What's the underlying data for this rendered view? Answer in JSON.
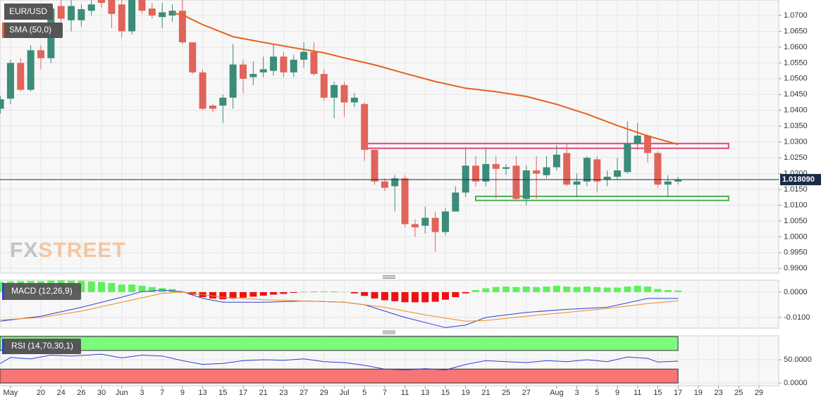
{
  "chart_data": [
    {
      "type": "candlestick",
      "title": "EUR/USD",
      "x": [
        -4,
        -3,
        -2,
        -1,
        0,
        1,
        2,
        3,
        4,
        5,
        6,
        7,
        8,
        9,
        10,
        11,
        12,
        13,
        14,
        15,
        16,
        17,
        18,
        19,
        20,
        21,
        22,
        23,
        24,
        25,
        26,
        27,
        28,
        29,
        30,
        31,
        32,
        33,
        34,
        35,
        36,
        37,
        38,
        39,
        40,
        41,
        42,
        43,
        44,
        45,
        46,
        47,
        48,
        49,
        50,
        51,
        52,
        53,
        54,
        55,
        56,
        57,
        58,
        59,
        60,
        61,
        62,
        63
      ],
      "open": [
        1.0405,
        1.0437,
        1.055,
        1.0465,
        1.059,
        1.0565,
        1.073,
        1.0685,
        1.0685,
        1.0715,
        1.0749,
        1.0749,
        1.0735,
        1.065,
        1.075,
        1.0722,
        1.0695,
        1.07,
        1.0715,
        1.0615,
        1.052,
        1.0415,
        1.0415,
        1.044,
        1.0545,
        1.0505,
        1.052,
        1.0525,
        1.057,
        1.052,
        1.056,
        1.0585,
        1.0515,
        1.044,
        1.048,
        1.0425,
        1.042,
        1.0275,
        1.0175,
        1.016,
        1.0185,
        1.004,
        1.0035,
        1.006,
        1.0015,
        1.008,
        1.014,
        1.0225,
        1.0175,
        1.023,
        1.0215,
        1.0225,
        1.012,
        1.021,
        1.0195,
        1.022,
        1.0265,
        1.0165,
        1.0175,
        1.0245,
        1.018,
        1.019,
        1.0205,
        1.0295,
        1.032,
        1.0265,
        1.0165,
        1.0175
      ],
      "high": [
        1.0445,
        1.056,
        1.0565,
        1.0606,
        1.0605,
        1.0725,
        1.075,
        1.0748,
        1.0735,
        1.0748,
        1.076,
        1.076,
        1.0765,
        1.0765,
        1.076,
        1.074,
        1.074,
        1.0735,
        1.076,
        1.0615,
        1.053,
        1.042,
        1.045,
        1.061,
        1.056,
        1.0555,
        1.057,
        1.061,
        1.0585,
        1.0575,
        1.0615,
        1.0615,
        1.053,
        1.049,
        1.049,
        1.0455,
        1.0425,
        1.0275,
        1.0185,
        1.0195,
        1.0195,
        1.0055,
        1.0095,
        1.008,
        1.009,
        1.016,
        1.028,
        1.0255,
        1.028,
        1.0255,
        1.023,
        1.0255,
        1.0225,
        1.0255,
        1.0255,
        1.029,
        1.0295,
        1.02,
        1.0255,
        1.0255,
        1.021,
        1.025,
        1.0365,
        1.036,
        1.0325,
        1.027,
        1.0195,
        1.019
      ],
      "low": [
        1.039,
        1.042,
        1.046,
        1.046,
        1.053,
        1.055,
        1.068,
        1.065,
        1.0665,
        1.07,
        1.0725,
        1.066,
        1.063,
        1.064,
        1.0705,
        1.069,
        1.066,
        1.068,
        1.061,
        1.0515,
        1.04,
        1.0395,
        1.036,
        1.0405,
        1.0455,
        1.048,
        1.0505,
        1.051,
        1.0505,
        1.0505,
        1.0535,
        1.051,
        1.043,
        1.0375,
        1.038,
        1.041,
        1.024,
        1.0165,
        1.0145,
        1.008,
        1.003,
        1.0,
        1.001,
        0.9953,
        1.0005,
        1.008,
        1.0125,
        1.016,
        1.016,
        1.012,
        1.0195,
        1.0115,
        1.01,
        1.012,
        1.0185,
        1.021,
        1.016,
        1.0125,
        1.016,
        1.014,
        1.016,
        1.018,
        1.02,
        1.0275,
        1.0235,
        1.0155,
        1.0125,
        1.0165
      ],
      "close": [
        1.0435,
        1.055,
        1.0465,
        1.059,
        1.0565,
        1.0722,
        1.069,
        1.073,
        1.072,
        1.0735,
        1.074,
        1.0705,
        1.065,
        1.075,
        1.0715,
        1.07,
        1.071,
        1.0715,
        1.0615,
        1.052,
        1.0405,
        1.0405,
        1.044,
        1.0545,
        1.05,
        1.0515,
        1.053,
        1.057,
        1.052,
        1.056,
        1.0585,
        1.0515,
        1.044,
        1.048,
        1.0425,
        1.044,
        1.0275,
        1.0175,
        1.0155,
        1.0185,
        1.004,
        1.003,
        1.006,
        1.0015,
        1.008,
        1.014,
        1.0225,
        1.0175,
        1.023,
        1.0215,
        1.022,
        1.012,
        1.021,
        1.02,
        1.022,
        1.026,
        1.0165,
        1.0175,
        1.025,
        1.0175,
        1.019,
        1.021,
        1.0295,
        1.032,
        1.0265,
        1.0165,
        1.0175,
        1.0181
      ],
      "up_color": "#3b8c79",
      "down_color": "#e0645a",
      "series": [
        {
          "name": "SMA (50,0)",
          "color": "#e8601c",
          "x": [
            13,
            14,
            16,
            19,
            22,
            25,
            28,
            30,
            33,
            36,
            39,
            42,
            45,
            48,
            51,
            54,
            57,
            60,
            63
          ],
          "values": [
            1.0708,
            1.0702,
            1.0671,
            1.0633,
            1.0615,
            1.0598,
            1.0582,
            1.0566,
            1.0544,
            1.0517,
            1.0491,
            1.047,
            1.0459,
            1.0444,
            1.0419,
            1.0388,
            1.0352,
            1.0319,
            1.0292
          ]
        }
      ],
      "zones": [
        {
          "x": [
            32,
            68
          ],
          "y": [
            1.028,
            1.0295
          ],
          "color": "#e8457f"
        },
        {
          "x": [
            43,
            68
          ],
          "y": [
            1.0115,
            1.0128
          ],
          "color": "#4caf50"
        }
      ],
      "last_price": {
        "value": 1.01809,
        "label": "1.018090"
      },
      "xlim": [
        -4.04,
        72.96
      ],
      "xticks": [
        {
          "value": -3,
          "label": "May"
        },
        {
          "value": 0,
          "label": "20"
        },
        {
          "value": 2,
          "label": "24"
        },
        {
          "value": 4,
          "label": "26"
        },
        {
          "value": 6,
          "label": "30"
        },
        {
          "value": 8,
          "label": "Jun"
        },
        {
          "value": 10,
          "label": "3"
        },
        {
          "value": 12,
          "label": "7"
        },
        {
          "value": 14,
          "label": "9"
        },
        {
          "value": 16,
          "label": "13"
        },
        {
          "value": 18,
          "label": "15"
        },
        {
          "value": 20,
          "label": "17"
        },
        {
          "value": 22,
          "label": "21"
        },
        {
          "value": 24,
          "label": "23"
        },
        {
          "value": 26,
          "label": "27"
        },
        {
          "value": 28,
          "label": "29"
        },
        {
          "value": 30,
          "label": "Jul"
        },
        {
          "value": 32,
          "label": "5"
        },
        {
          "value": 34,
          "label": "7"
        },
        {
          "value": 36,
          "label": "11"
        },
        {
          "value": 38,
          "label": "13"
        },
        {
          "value": 40,
          "label": "15"
        },
        {
          "value": 42,
          "label": "19"
        },
        {
          "value": 44,
          "label": "21"
        },
        {
          "value": 46,
          "label": "25"
        },
        {
          "value": 48,
          "label": "27"
        },
        {
          "value": 51,
          "label": "Aug"
        },
        {
          "value": 53,
          "label": "3"
        },
        {
          "value": 55,
          "label": "5"
        },
        {
          "value": 57,
          "label": "9"
        },
        {
          "value": 59,
          "label": "11"
        },
        {
          "value": 61,
          "label": "15"
        },
        {
          "value": 63,
          "label": "17"
        },
        {
          "value": 65,
          "label": "19"
        },
        {
          "value": 67,
          "label": "23"
        },
        {
          "value": 69,
          "label": "25"
        },
        {
          "value": 71,
          "label": "29"
        }
      ],
      "ylim": [
        0.9885,
        1.0749
      ],
      "yticks": [
        {
          "value": 0.99,
          "label": "0.9900"
        },
        {
          "value": 0.995,
          "label": "0.9950"
        },
        {
          "value": 1.0,
          "label": "1.0000"
        },
        {
          "value": 1.005,
          "label": "1.0050"
        },
        {
          "value": 1.01,
          "label": "1.0100"
        },
        {
          "value": 1.015,
          "label": "1.0150"
        },
        {
          "value": 1.02,
          "label": "1.0200"
        },
        {
          "value": 1.025,
          "label": "1.0250"
        },
        {
          "value": 1.03,
          "label": "1.0300"
        },
        {
          "value": 1.035,
          "label": "1.0350"
        },
        {
          "value": 1.04,
          "label": "1.0400"
        },
        {
          "value": 1.045,
          "label": "1.0450"
        },
        {
          "value": 1.05,
          "label": "1.0500"
        },
        {
          "value": 1.055,
          "label": "1.0550"
        },
        {
          "value": 1.06,
          "label": "1.0600"
        },
        {
          "value": 1.065,
          "label": "1.0650"
        },
        {
          "value": 1.07,
          "label": "1.0700"
        }
      ],
      "grid": true,
      "watermark": [
        "FX",
        "STREET"
      ]
    },
    {
      "type": "macd",
      "title": "MACD (12,26,9)",
      "histogram": [
        0.004,
        0.0042,
        0.0043,
        0.0044,
        0.0043,
        0.0045,
        0.0046,
        0.0045,
        0.0045,
        0.0042,
        0.004,
        0.0036,
        0.003,
        0.003,
        0.0025,
        0.002,
        0.0016,
        0.0012,
        0.0002,
        -0.001,
        -0.002,
        -0.0025,
        -0.0028,
        -0.0025,
        -0.0022,
        -0.0018,
        -0.0014,
        -0.001,
        -0.0007,
        -0.0003,
        0.0002,
        0.0003,
        0.0003,
        0.0003,
        0.0001,
        -0.0005,
        -0.0015,
        -0.0025,
        -0.0032,
        -0.0036,
        -0.004,
        -0.004,
        -0.004,
        -0.0038,
        -0.003,
        -0.002,
        -0.0005,
        0.0008,
        0.0015,
        0.002,
        0.0022,
        0.002,
        0.0022,
        0.002,
        0.0022,
        0.0025,
        0.0022,
        0.002,
        0.0022,
        0.002,
        0.0018,
        0.0018,
        0.0022,
        0.0025,
        0.0022,
        0.0012,
        0.0008,
        0.0006
      ],
      "positive_color": "#5ef05e",
      "negative_color": "#f01010",
      "series": [
        {
          "color": "#2f3fd8",
          "x": [
            -4,
            0,
            4,
            8,
            10,
            12,
            14,
            16,
            18,
            22,
            26,
            30,
            32,
            36,
            40,
            42,
            44,
            48,
            52,
            56,
            60,
            63
          ],
          "values": [
            -0.0115,
            -0.0095,
            -0.006,
            -0.002,
            0.0002,
            0.0008,
            0.0002,
            -0.0025,
            -0.004,
            -0.004,
            -0.0035,
            -0.004,
            -0.005,
            -0.01,
            -0.014,
            -0.013,
            -0.01,
            -0.008,
            -0.0068,
            -0.006,
            -0.0025,
            -0.0025
          ]
        },
        {
          "color": "#f08a24",
          "x": [
            -4,
            0,
            4,
            8,
            12,
            14,
            18,
            22,
            26,
            30,
            34,
            38,
            42,
            44,
            48,
            52,
            56,
            60,
            63
          ],
          "values": [
            -0.011,
            -0.01,
            -0.0075,
            -0.004,
            -0.0005,
            0.0,
            -0.002,
            -0.003,
            -0.0035,
            -0.004,
            -0.006,
            -0.009,
            -0.0115,
            -0.0112,
            -0.0095,
            -0.008,
            -0.0065,
            -0.0045,
            -0.0035
          ]
        }
      ],
      "ylim": [
        -0.0142,
        0.0047
      ],
      "yticks": [
        {
          "value": -0.01,
          "label": "-0.0100"
        },
        {
          "value": 0,
          "label": "0.0000"
        }
      ]
    },
    {
      "type": "rsi",
      "title": "RSI (14,70,30,1)",
      "series": [
        {
          "color": "#2f3fd8",
          "x": [
            -4,
            -3,
            -1,
            1,
            3,
            6,
            8,
            10,
            12,
            14,
            16,
            18,
            20,
            22,
            24,
            26,
            28,
            30,
            32,
            34,
            36,
            38,
            40,
            42,
            44,
            46,
            48,
            50,
            52,
            54,
            56,
            58,
            60,
            61,
            63
          ],
          "values": [
            42,
            55,
            52,
            60,
            58,
            62,
            54,
            60,
            58,
            48,
            40,
            42,
            48,
            50,
            49,
            52,
            46,
            44,
            38,
            30,
            28,
            31,
            28,
            40,
            48,
            46,
            44,
            48,
            46,
            50,
            46,
            56,
            53,
            45,
            47
          ]
        }
      ],
      "bands": [
        {
          "y": [
            70,
            100
          ],
          "color": "#7cfc7c"
        },
        {
          "y": [
            0,
            30
          ],
          "color": "#f87575"
        }
      ],
      "ylim": [
        -6,
        101.5
      ],
      "yticks": [
        {
          "value": 0,
          "label": "0.0000"
        },
        {
          "value": 50,
          "label": "50.0000"
        }
      ]
    }
  ]
}
